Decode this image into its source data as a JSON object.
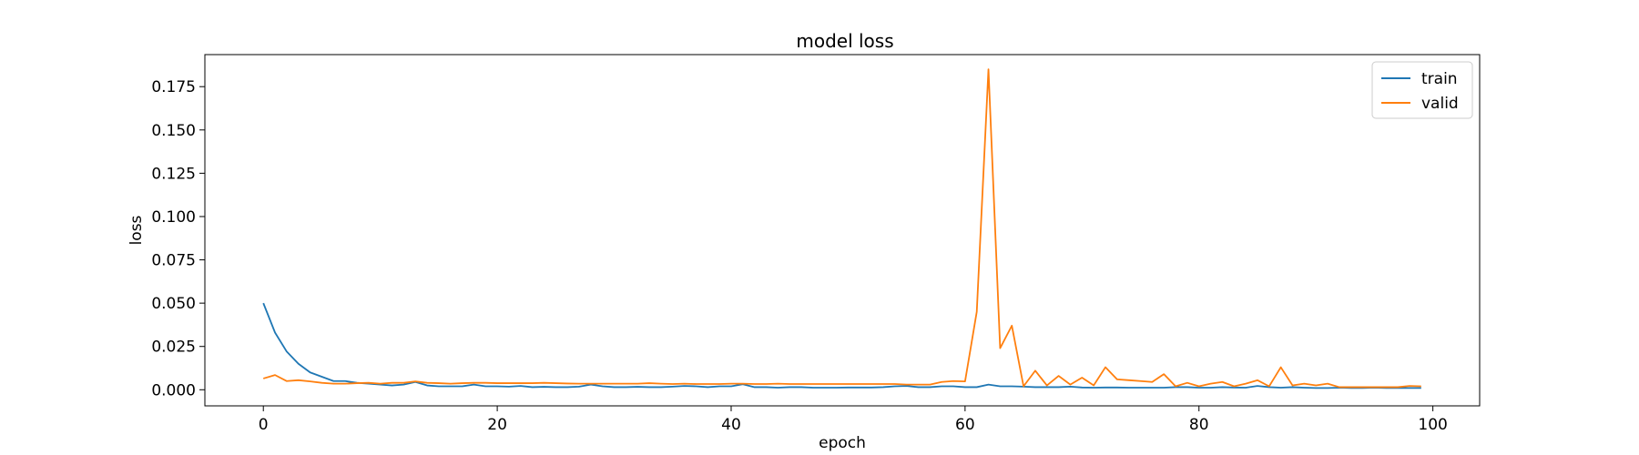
{
  "chart_data": {
    "type": "line",
    "title": "model loss",
    "xlabel": "epoch",
    "ylabel": "loss",
    "xlim": [
      -5,
      104
    ],
    "ylim": [
      -0.0093,
      0.1935
    ],
    "xticks": [
      0,
      20,
      40,
      60,
      80,
      100
    ],
    "yticks": [
      0.0,
      0.025,
      0.05,
      0.075,
      0.1,
      0.125,
      0.15,
      0.175
    ],
    "ytick_labels": [
      "0.000",
      "0.025",
      "0.050",
      "0.075",
      "0.100",
      "0.125",
      "0.150",
      "0.175"
    ],
    "grid": false,
    "legend_position": "top-right",
    "series": [
      {
        "name": "train",
        "color": "#1f77b4",
        "values": [
          0.05,
          0.033,
          0.022,
          0.015,
          0.01,
          0.0075,
          0.005,
          0.005,
          0.004,
          0.0035,
          0.003,
          0.0025,
          0.003,
          0.0045,
          0.0025,
          0.002,
          0.002,
          0.002,
          0.003,
          0.002,
          0.002,
          0.0018,
          0.0022,
          0.0015,
          0.0017,
          0.0015,
          0.0015,
          0.0018,
          0.003,
          0.002,
          0.0015,
          0.0015,
          0.0017,
          0.0015,
          0.0015,
          0.0018,
          0.0022,
          0.002,
          0.0015,
          0.002,
          0.002,
          0.0032,
          0.0015,
          0.0015,
          0.0012,
          0.0015,
          0.0015,
          0.0012,
          0.0012,
          0.0012,
          0.0013,
          0.0013,
          0.0013,
          0.0015,
          0.002,
          0.0022,
          0.0015,
          0.0015,
          0.002,
          0.002,
          0.0015,
          0.0015,
          0.003,
          0.002,
          0.002,
          0.0018,
          0.0015,
          0.0015,
          0.0015,
          0.0018,
          0.0013,
          0.0012,
          0.0013,
          0.0013,
          0.0012,
          0.0012,
          0.0012,
          0.0012,
          0.0015,
          0.0015,
          0.0012,
          0.0012,
          0.0015,
          0.0013,
          0.0012,
          0.0022,
          0.0015,
          0.0012,
          0.0015,
          0.0012,
          0.001,
          0.001,
          0.0012,
          0.001,
          0.001,
          0.0012,
          0.001,
          0.001,
          0.001,
          0.001
        ]
      },
      {
        "name": "valid",
        "color": "#ff7f0e",
        "values": [
          0.0065,
          0.0085,
          0.005,
          0.0055,
          0.0048,
          0.004,
          0.0035,
          0.0035,
          0.0038,
          0.004,
          0.0035,
          0.004,
          0.004,
          0.0048,
          0.004,
          0.0038,
          0.0035,
          0.0038,
          0.004,
          0.004,
          0.0038,
          0.0038,
          0.0038,
          0.0038,
          0.004,
          0.0038,
          0.0036,
          0.0035,
          0.0035,
          0.0035,
          0.0035,
          0.0035,
          0.0035,
          0.0038,
          0.0035,
          0.0033,
          0.0035,
          0.0033,
          0.0033,
          0.0033,
          0.0035,
          0.0035,
          0.0033,
          0.0033,
          0.0035,
          0.0033,
          0.0033,
          0.0033,
          0.0033,
          0.0033,
          0.0033,
          0.0033,
          0.0033,
          0.0033,
          0.0033,
          0.003,
          0.003,
          0.003,
          0.0045,
          0.005,
          0.0048,
          0.045,
          0.185,
          0.024,
          0.037,
          0.002,
          0.011,
          0.0025,
          0.008,
          0.003,
          0.007,
          0.0025,
          0.013,
          0.006,
          0.0055,
          0.005,
          0.0045,
          0.009,
          0.002,
          0.004,
          0.002,
          0.0035,
          0.0045,
          0.002,
          0.0035,
          0.0055,
          0.002,
          0.013,
          0.0025,
          0.0035,
          0.0025,
          0.0035,
          0.0015,
          0.0015,
          0.0015,
          0.0015,
          0.0015,
          0.0015,
          0.0022,
          0.002
        ]
      }
    ]
  }
}
